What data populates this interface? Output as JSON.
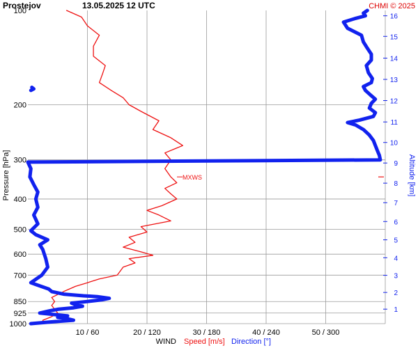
{
  "header": {
    "station": "Prostejov",
    "datetime": "13.05.2025 12 UTC",
    "credit": "CHMI © 2025"
  },
  "colors": {
    "speed": "#ee1111",
    "direction": "#1122ee",
    "grid": "#9a9a9a",
    "text": "#000000",
    "credit": "#dd0000"
  },
  "chart_data": {
    "type": "line",
    "title": "Prostejov    13.05.2025 12 UTC",
    "pressure_axis": {
      "label": "Pressure [hPa]",
      "scale": "log",
      "range": [
        1000,
        100
      ],
      "ticks": [
        100,
        200,
        300,
        400,
        500,
        600,
        700,
        850,
        925,
        1000
      ]
    },
    "altitude_axis": {
      "label": "Altitude [km]",
      "ticks": [
        {
          "km": 1,
          "p": 899
        },
        {
          "km": 2,
          "p": 795
        },
        {
          "km": 3,
          "p": 701
        },
        {
          "km": 4,
          "p": 616
        },
        {
          "km": 5,
          "p": 540
        },
        {
          "km": 6,
          "p": 472
        },
        {
          "km": 7,
          "p": 411
        },
        {
          "km": 8,
          "p": 356
        },
        {
          "km": 9,
          "p": 307
        },
        {
          "km": 10,
          "p": 264
        },
        {
          "km": 11,
          "p": 227
        },
        {
          "km": 12,
          "p": 194
        },
        {
          "km": 13,
          "p": 166
        },
        {
          "km": 14,
          "p": 142
        },
        {
          "km": 15,
          "p": 121
        },
        {
          "km": 16,
          "p": 104
        }
      ]
    },
    "wind_axis": {
      "title": "WIND",
      "speed_label": "Speed [m/s]",
      "direction_label": "Direction [°]",
      "ticks": [
        "10 / 60",
        "20 / 120",
        "30 / 180",
        "40 / 240",
        "50 / 300"
      ],
      "speed_range": [
        0,
        60
      ],
      "direction_range": [
        0,
        360
      ]
    },
    "annotation": {
      "label": "MXWS",
      "pressure": 340,
      "speed": 25.5
    },
    "series": [
      {
        "quantity": "speed",
        "unit": "m/s",
        "points": [
          [
            1000,
            2.7
          ],
          [
            975,
            2.5
          ],
          [
            950,
            4
          ],
          [
            925,
            5
          ],
          [
            900,
            4.5
          ],
          [
            875,
            4
          ],
          [
            850,
            4.5
          ],
          [
            825,
            4
          ],
          [
            790,
            6
          ],
          [
            760,
            8
          ],
          [
            740,
            10
          ],
          [
            720,
            12
          ],
          [
            700,
            15
          ],
          [
            680,
            15.5
          ],
          [
            660,
            16
          ],
          [
            640,
            18
          ],
          [
            620,
            17
          ],
          [
            605,
            21
          ],
          [
            590,
            19
          ],
          [
            570,
            16
          ],
          [
            550,
            18
          ],
          [
            530,
            17
          ],
          [
            510,
            20
          ],
          [
            490,
            19
          ],
          [
            470,
            24
          ],
          [
            450,
            22
          ],
          [
            435,
            20
          ],
          [
            420,
            22.5
          ],
          [
            400,
            25
          ],
          [
            385,
            24
          ],
          [
            370,
            23
          ],
          [
            355,
            25
          ],
          [
            340,
            24
          ],
          [
            320,
            23
          ],
          [
            300,
            24
          ],
          [
            285,
            23
          ],
          [
            270,
            26
          ],
          [
            255,
            24
          ],
          [
            240,
            21
          ],
          [
            225,
            22
          ],
          [
            210,
            19
          ],
          [
            200,
            17
          ],
          [
            190,
            16
          ],
          [
            180,
            14
          ],
          [
            170,
            12
          ],
          [
            160,
            12.5
          ],
          [
            150,
            13
          ],
          [
            140,
            11
          ],
          [
            130,
            11
          ],
          [
            120,
            12
          ],
          [
            112,
            10
          ],
          [
            105,
            9
          ],
          [
            100,
            6.5
          ]
        ]
      },
      {
        "quantity": "direction",
        "unit": "deg",
        "points": [
          [
            1000,
            3
          ],
          [
            985,
            28
          ],
          [
            975,
            46
          ],
          [
            965,
            40
          ],
          [
            955,
            30
          ],
          [
            945,
            40
          ],
          [
            925,
            12
          ],
          [
            910,
            22
          ],
          [
            900,
            30
          ],
          [
            890,
            46
          ],
          [
            880,
            55
          ],
          [
            870,
            48
          ],
          [
            860,
            44
          ],
          [
            850,
            60
          ],
          [
            840,
            74
          ],
          [
            830,
            82
          ],
          [
            820,
            70
          ],
          [
            815,
            56
          ],
          [
            805,
            36
          ],
          [
            790,
            24
          ],
          [
            775,
            21
          ],
          [
            750,
            8
          ],
          [
            740,
            3
          ],
          [
            700,
            14
          ],
          [
            660,
            20
          ],
          [
            620,
            18
          ],
          [
            580,
            15
          ],
          [
            560,
            12
          ],
          [
            540,
            20
          ],
          [
            520,
            8
          ],
          [
            505,
            3
          ],
          [
            480,
            10
          ],
          [
            450,
            6
          ],
          [
            425,
            10
          ],
          [
            400,
            8
          ],
          [
            380,
            10
          ],
          [
            360,
            6
          ],
          [
            340,
            2
          ],
          [
            320,
            3
          ],
          [
            305,
            0
          ],
          [
            300,
            355
          ],
          [
            290,
            354
          ],
          [
            280,
            352
          ],
          [
            270,
            350
          ],
          [
            260,
            348
          ],
          [
            250,
            344
          ],
          [
            240,
            338
          ],
          [
            232,
            330
          ],
          [
            228,
            322
          ],
          [
            224,
            334
          ],
          [
            218,
            348
          ],
          [
            212,
            350
          ],
          [
            205,
            344
          ],
          [
            198,
            346
          ],
          [
            192,
            350
          ],
          [
            186,
            345
          ],
          [
            180,
            340
          ],
          [
            175,
            338
          ],
          [
            170,
            346
          ],
          [
            165,
            347
          ],
          [
            158,
            343
          ],
          [
            150,
            341
          ],
          [
            144,
            346
          ],
          [
            138,
            346
          ],
          [
            132,
            342
          ],
          [
            126,
            338
          ],
          [
            120,
            336
          ],
          [
            114,
            322
          ],
          [
            109,
            318
          ],
          [
            106,
            330
          ],
          [
            104,
            340
          ],
          [
            102,
            338
          ],
          [
            100,
            342
          ]
        ]
      },
      {
        "quantity": "direction",
        "unit": "deg",
        "points": [
          [
            180,
            3
          ],
          [
            178,
            6
          ],
          [
            176,
            4
          ]
        ]
      }
    ],
    "grid": true
  }
}
